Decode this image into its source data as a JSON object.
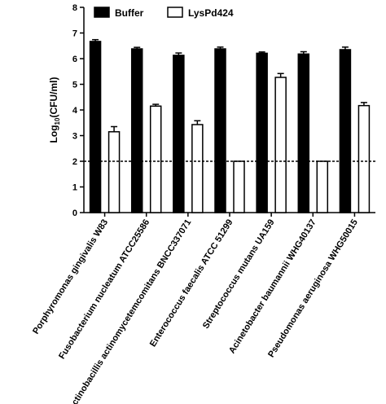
{
  "chart_data": {
    "type": "bar",
    "ylabel": "Log10(CFU/ml)",
    "ylabel_main": "Log",
    "ylabel_sub": "10",
    "ylabel_rest": "(CFU/ml)",
    "ylim": [
      0,
      8
    ],
    "yticks": [
      0,
      1,
      2,
      3,
      4,
      5,
      6,
      7,
      8
    ],
    "categories": [
      "Porphyromonas gingivalis W83",
      "Fusobacterium nucleatum ATCC25586",
      "Actinobacillis actinomycetemcomitans BNCC337071",
      "Enterococcus faecalis ATCC 51299",
      "Streptococcus mutans UA159",
      "Acinetobacter baumannii WHG40137",
      "Pseudomonas aeruginosa WHG50015"
    ],
    "series": [
      {
        "name": "Buffer",
        "color": "#000000",
        "values": [
          6.67,
          6.38,
          6.13,
          6.38,
          6.21,
          6.18,
          6.35
        ],
        "errors": [
          0.07,
          0.06,
          0.09,
          0.07,
          0.05,
          0.09,
          0.1
        ]
      },
      {
        "name": "LysPd424",
        "color": "#ffffff",
        "values": [
          3.15,
          4.15,
          3.43,
          2.0,
          5.27,
          2.0,
          4.17
        ],
        "errors": [
          0.2,
          0.07,
          0.15,
          0.0,
          0.15,
          0.0,
          0.12
        ]
      }
    ],
    "reference_line": {
      "y": 2,
      "style": "dashed"
    },
    "legend_position": "top",
    "grid": false
  }
}
